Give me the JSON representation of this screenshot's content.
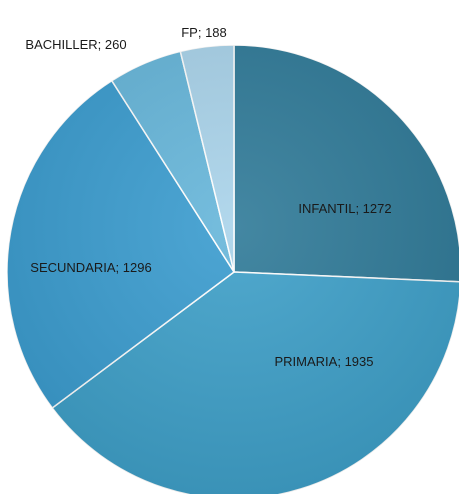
{
  "chart_data": {
    "type": "pie",
    "title": "",
    "categories": [
      "INFANTIL",
      "PRIMARIA",
      "SECUNDARIA",
      "BACHILLER",
      "FP"
    ],
    "values": [
      1272,
      1935,
      1296,
      260,
      188
    ],
    "labels": [
      "INFANTIL; 1272",
      "PRIMARIA; 1935",
      "SECUNDARIA; 1296",
      "BACHILLER; 260",
      "FP; 188"
    ],
    "colors": [
      "#2f7a98",
      "#3ea0c9",
      "#3a9ccf",
      "#66b6da",
      "#a9d3ea"
    ],
    "legend": "none",
    "start_angle_deg": 0,
    "direction": "clockwise"
  }
}
